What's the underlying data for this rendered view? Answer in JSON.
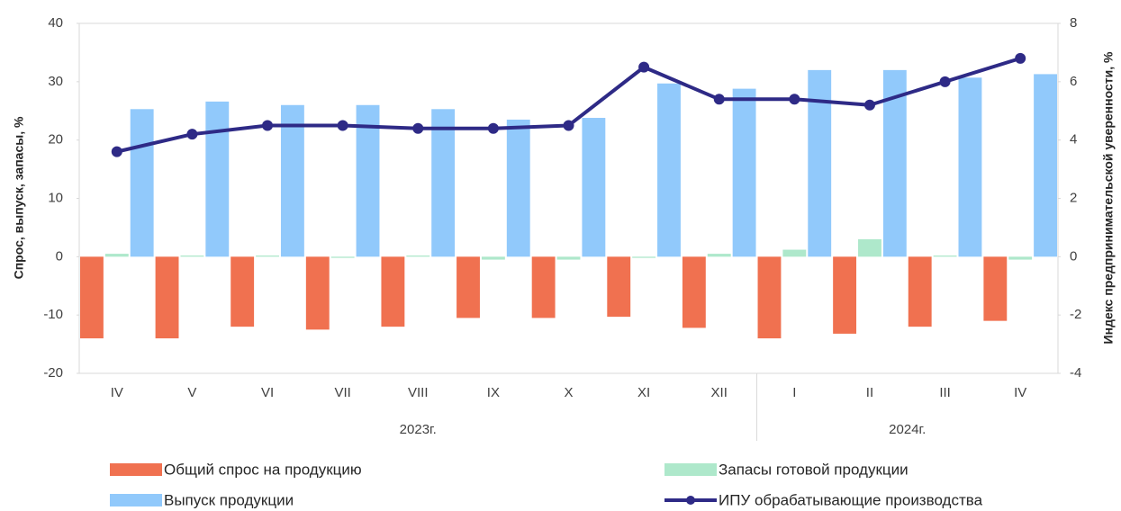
{
  "chart_data": {
    "type": "bar_line",
    "groups": [
      {
        "label": "2023г.",
        "categories": [
          "IV",
          "V",
          "VI",
          "VII",
          "VIII",
          "IX",
          "X",
          "XI",
          "XII"
        ]
      },
      {
        "label": "2024г.",
        "categories": [
          "I",
          "II",
          "III",
          "IV"
        ]
      }
    ],
    "series": [
      {
        "name": "Общий спрос на продукцию",
        "type": "bar",
        "color": "#f07150",
        "values": [
          -14,
          -14,
          -12,
          -12.5,
          -12,
          -10.5,
          -10.5,
          -10.3,
          -12.2,
          -14,
          -13.2,
          -12,
          -11
        ]
      },
      {
        "name": "Запасы готовой продукции",
        "type": "bar",
        "color": "#aee8cb",
        "values": [
          0.5,
          0.2,
          0.2,
          -0.2,
          0.2,
          -0.5,
          -0.5,
          -0.2,
          0.5,
          1.2,
          3,
          0.2,
          -0.5
        ]
      },
      {
        "name": "Выпуск продукции",
        "type": "bar",
        "color": "#91c9fb",
        "values": [
          25.3,
          26.6,
          26,
          26,
          25.3,
          23.5,
          23.8,
          29.7,
          28.8,
          32,
          32,
          30.7,
          31.3
        ]
      },
      {
        "name": "ИПУ обрабатывающие производства",
        "type": "line",
        "axis": "y2",
        "color": "#2e2a86",
        "values": [
          3.6,
          4.2,
          4.5,
          4.5,
          4.4,
          4.4,
          4.5,
          6.5,
          5.4,
          5.4,
          5.2,
          6.0,
          6.8
        ]
      }
    ],
    "ylabel": "Спрос, выпуск, запасы, %",
    "y2label": "Индекс предпринимательской уверенности, %",
    "ylim": [
      -20,
      40
    ],
    "yticks": [
      -20,
      -10,
      0,
      10,
      20,
      30,
      40
    ],
    "y2lim": [
      -4,
      8
    ],
    "y2ticks": [
      -4,
      -2,
      0,
      2,
      4,
      6,
      8
    ]
  }
}
